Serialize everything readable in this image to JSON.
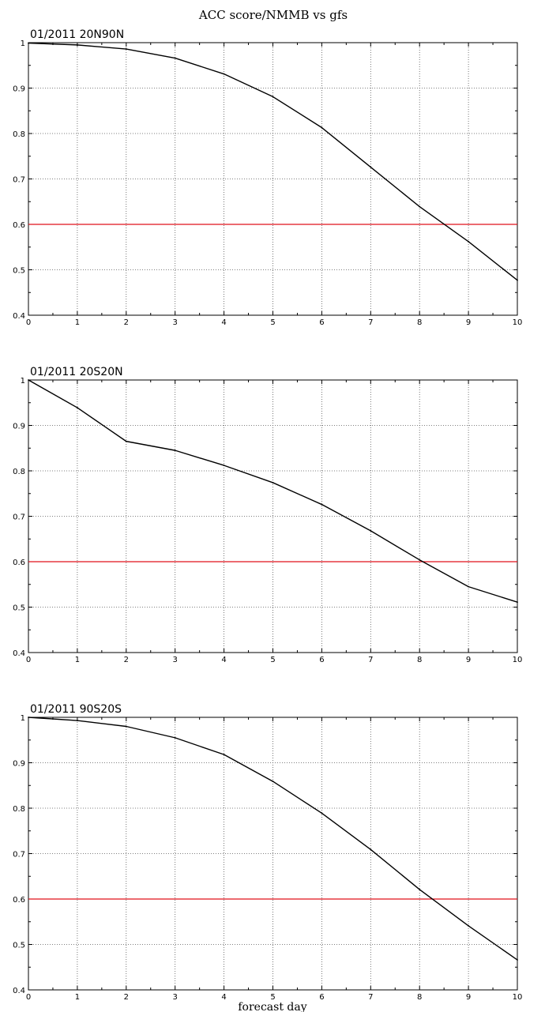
{
  "figure": {
    "title": "ACC score/NMMB vs gfs",
    "xlabel": "forecast day"
  },
  "colors": {
    "series": "#000000",
    "threshold": "#e0101a",
    "grid": "#555555",
    "frame": "#000000",
    "background": "#ffffff"
  },
  "chart_data": [
    {
      "type": "line",
      "title": "01/2011 20N90N",
      "xlabel": "",
      "ylabel": "",
      "x": [
        0,
        1,
        2,
        3,
        4,
        5,
        6,
        7,
        8,
        9,
        10
      ],
      "xlim": [
        0,
        10
      ],
      "ylim": [
        0.4,
        1.0
      ],
      "xticks": [
        "0",
        "1",
        "2",
        "3",
        "4",
        "5",
        "6",
        "7",
        "8",
        "9",
        "10"
      ],
      "yticks": [
        "0.4",
        "0.5",
        "0.6",
        "0.7",
        "0.8",
        "0.9",
        "1"
      ],
      "grid": true,
      "series": [
        {
          "values": [
            0.999,
            0.995,
            0.986,
            0.966,
            0.931,
            0.881,
            0.813,
            0.726,
            0.639,
            0.562,
            0.477
          ]
        }
      ],
      "reference_line": {
        "y": 0.6
      }
    },
    {
      "type": "line",
      "title": "01/2011 20S20N",
      "xlabel": "",
      "ylabel": "",
      "x": [
        0,
        1,
        2,
        3,
        4,
        5,
        6,
        7,
        8,
        9,
        10
      ],
      "xlim": [
        0,
        10
      ],
      "ylim": [
        0.4,
        1.0
      ],
      "xticks": [
        "0",
        "1",
        "2",
        "3",
        "4",
        "5",
        "6",
        "7",
        "8",
        "9",
        "10"
      ],
      "yticks": [
        "0.4",
        "0.5",
        "0.6",
        "0.7",
        "0.8",
        "0.9",
        "1"
      ],
      "grid": true,
      "series": [
        {
          "values": [
            1.0,
            0.939,
            0.865,
            0.845,
            0.812,
            0.774,
            0.726,
            0.668,
            0.604,
            0.545,
            0.511
          ]
        }
      ],
      "reference_line": {
        "y": 0.6
      }
    },
    {
      "type": "line",
      "title": "01/2011 90S20S",
      "xlabel": "forecast day",
      "ylabel": "",
      "x": [
        0,
        1,
        2,
        3,
        4,
        5,
        6,
        7,
        8,
        9,
        10
      ],
      "xlim": [
        0,
        10
      ],
      "ylim": [
        0.4,
        1.0
      ],
      "xticks": [
        "0",
        "1",
        "2",
        "3",
        "4",
        "5",
        "6",
        "7",
        "8",
        "9",
        "10"
      ],
      "yticks": [
        "0.4",
        "0.5",
        "0.6",
        "0.7",
        "0.8",
        "0.9",
        "1"
      ],
      "grid": true,
      "series": [
        {
          "values": [
            1.0,
            0.993,
            0.98,
            0.955,
            0.918,
            0.859,
            0.789,
            0.709,
            0.621,
            0.541,
            0.466
          ]
        }
      ],
      "reference_line": {
        "y": 0.6
      }
    }
  ]
}
